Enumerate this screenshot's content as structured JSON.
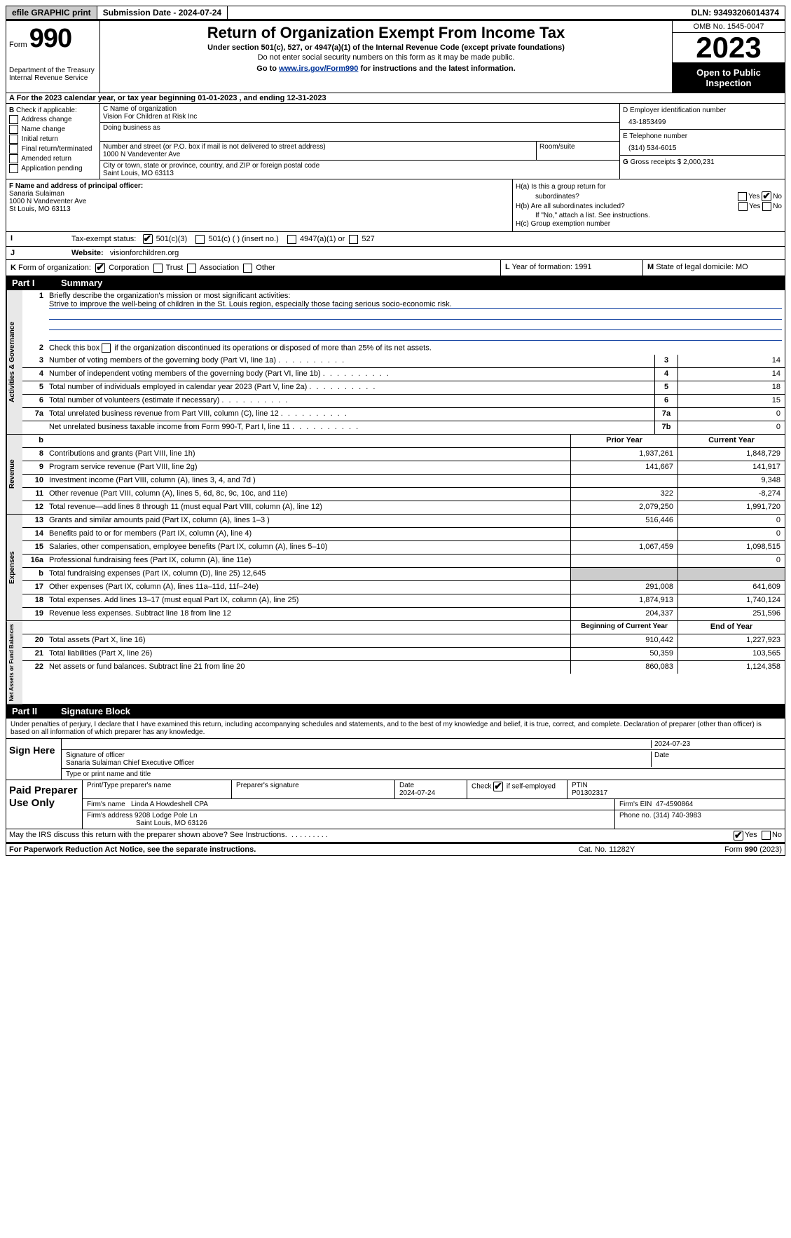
{
  "topbar": {
    "efile": "efile GRAPHIC print",
    "submission": "Submission Date - 2024-07-24",
    "dln": "DLN: 93493206014374"
  },
  "header": {
    "form_word": "Form",
    "form_num": "990",
    "title": "Return of Organization Exempt From Income Tax",
    "under": "Under section 501(c), 527, or 4947(a)(1) of the Internal Revenue Code (except private foundations)",
    "warn": "Do not enter social security numbers on this form as it may be made public.",
    "goto_pre": "Go to ",
    "goto_link": "www.irs.gov/Form990",
    "goto_post": " for instructions and the latest information.",
    "dept": "Department of the Treasury",
    "irs": "Internal Revenue Service",
    "omb": "OMB No. 1545-0047",
    "year": "2023",
    "open": "Open to Public Inspection"
  },
  "row_a": "A For the 2023 calendar year, or tax year beginning 01-01-2023    , and ending 12-31-2023",
  "section_b": {
    "b_label": "B",
    "b_check": "Check if applicable:",
    "b_items": [
      "Address change",
      "Name change",
      "Initial return",
      "Final return/terminated",
      "Amended return",
      "Application pending"
    ],
    "c_name_label": "C Name of organization",
    "c_name": "Vision For Children at Risk Inc",
    "dba_label": "Doing business as",
    "addr_label": "Number and street (or P.O. box if mail is not delivered to street address)",
    "addr": "1000 N Vandeventer Ave",
    "room_label": "Room/suite",
    "city_label": "City or town, state or province, country, and ZIP or foreign postal code",
    "city": "Saint Louis, MO  63113",
    "d_ein_label": "D Employer identification number",
    "d_ein": "43-1853499",
    "e_phone_label": "E Telephone number",
    "e_phone": "(314) 534-6015",
    "g_gross_label": "G",
    "g_gross": "Gross receipts $ 2,000,231"
  },
  "section_fh": {
    "f_label": "F  Name and address of principal officer:",
    "f_name": "Sanaria Sulaiman",
    "f_addr1": "1000 N Vandeventer Ave",
    "f_addr2": "St Louis, MO  63113",
    "ha_label": "H(a)  Is this a group return for",
    "ha_sub": "subordinates?",
    "hb_label": "H(b)  Are all subordinates included?",
    "hb_note": "If \"No,\" attach a list. See instructions.",
    "hc_label": "H(c)  Group exemption number",
    "yes": "Yes",
    "no": "No"
  },
  "row_i": {
    "label": "I",
    "text": "Tax-exempt status:",
    "opt1": "501(c)(3)",
    "opt2": "501(c) (  ) (insert no.)",
    "opt3": "4947(a)(1) or",
    "opt4": "527"
  },
  "row_j": {
    "label": "J",
    "text": "Website:",
    "val": "visionforchildren.org"
  },
  "row_k": {
    "label": "K",
    "text": "Form of organization:",
    "opts": [
      "Corporation",
      "Trust",
      "Association",
      "Other"
    ],
    "l_label": "L",
    "l_text": "Year of formation: 1991",
    "m_label": "M",
    "m_text": "State of legal domicile: MO"
  },
  "part1": {
    "num": "Part I",
    "title": "Summary"
  },
  "governance": {
    "vtab": "Activities & Governance",
    "line1_num": "1",
    "line1": "Briefly describe the organization's mission or most significant activities:",
    "line1_val": "Strive to improve the well-being of children in the St. Louis region, especially those facing serious socio-economic risk.",
    "line2_num": "2",
    "line2": "Check this box            if the organization discontinued its operations or disposed of more than 25% of its net assets.",
    "rows": [
      {
        "n": "3",
        "d": "Number of voting members of the governing body (Part VI, line 1a)",
        "b": "3",
        "v": "14"
      },
      {
        "n": "4",
        "d": "Number of independent voting members of the governing body (Part VI, line 1b)",
        "b": "4",
        "v": "14"
      },
      {
        "n": "5",
        "d": "Total number of individuals employed in calendar year 2023 (Part V, line 2a)",
        "b": "5",
        "v": "18"
      },
      {
        "n": "6",
        "d": "Total number of volunteers (estimate if necessary)",
        "b": "6",
        "v": "15"
      },
      {
        "n": "7a",
        "d": "Total unrelated business revenue from Part VIII, column (C), line 12",
        "b": "7a",
        "v": "0"
      },
      {
        "n": "",
        "d": "Net unrelated business taxable income from Form 990-T, Part I, line 11",
        "b": "7b",
        "v": "0"
      }
    ]
  },
  "revenue": {
    "vtab": "Revenue",
    "head_b": "b",
    "head_prior": "Prior Year",
    "head_curr": "Current Year",
    "rows": [
      {
        "n": "8",
        "d": "Contributions and grants (Part VIII, line 1h)",
        "p": "1,937,261",
        "c": "1,848,729"
      },
      {
        "n": "9",
        "d": "Program service revenue (Part VIII, line 2g)",
        "p": "141,667",
        "c": "141,917"
      },
      {
        "n": "10",
        "d": "Investment income (Part VIII, column (A), lines 3, 4, and 7d )",
        "p": "",
        "c": "9,348"
      },
      {
        "n": "11",
        "d": "Other revenue (Part VIII, column (A), lines 5, 6d, 8c, 9c, 10c, and 11e)",
        "p": "322",
        "c": "-8,274"
      },
      {
        "n": "12",
        "d": "Total revenue—add lines 8 through 11 (must equal Part VIII, column (A), line 12)",
        "p": "2,079,250",
        "c": "1,991,720"
      }
    ]
  },
  "expenses": {
    "vtab": "Expenses",
    "rows": [
      {
        "n": "13",
        "d": "Grants and similar amounts paid (Part IX, column (A), lines 1–3 )",
        "p": "516,446",
        "c": "0"
      },
      {
        "n": "14",
        "d": "Benefits paid to or for members (Part IX, column (A), line 4)",
        "p": "",
        "c": "0"
      },
      {
        "n": "15",
        "d": "Salaries, other compensation, employee benefits (Part IX, column (A), lines 5–10)",
        "p": "1,067,459",
        "c": "1,098,515"
      },
      {
        "n": "16a",
        "d": "Professional fundraising fees (Part IX, column (A), line 11e)",
        "p": "",
        "c": "0"
      },
      {
        "n": "b",
        "d": "Total fundraising expenses (Part IX, column (D), line 25) 12,645",
        "p": "shaded",
        "c": "shaded"
      },
      {
        "n": "17",
        "d": "Other expenses (Part IX, column (A), lines 11a–11d, 11f–24e)",
        "p": "291,008",
        "c": "641,609"
      },
      {
        "n": "18",
        "d": "Total expenses. Add lines 13–17 (must equal Part IX, column (A), line 25)",
        "p": "1,874,913",
        "c": "1,740,124"
      },
      {
        "n": "19",
        "d": "Revenue less expenses. Subtract line 18 from line 12",
        "p": "204,337",
        "c": "251,596"
      }
    ]
  },
  "netassets": {
    "vtab": "Net Assets or Fund Balances",
    "head_prior": "Beginning of Current Year",
    "head_curr": "End of Year",
    "rows": [
      {
        "n": "20",
        "d": "Total assets (Part X, line 16)",
        "p": "910,442",
        "c": "1,227,923"
      },
      {
        "n": "21",
        "d": "Total liabilities (Part X, line 26)",
        "p": "50,359",
        "c": "103,565"
      },
      {
        "n": "22",
        "d": "Net assets or fund balances. Subtract line 21 from line 20",
        "p": "860,083",
        "c": "1,124,358"
      }
    ]
  },
  "part2": {
    "num": "Part II",
    "title": "Signature Block"
  },
  "sig": {
    "decl": "Under penalties of perjury, I declare that I have examined this return, including accompanying schedules and statements, and to the best of my knowledge and belief, it is true, correct, and complete. Declaration of preparer (other than officer) is based on all information of which preparer has any knowledge.",
    "sign_here": "Sign Here",
    "sig_label": "Signature of officer",
    "date_label": "Date",
    "date_val": "2024-07-23",
    "officer": "Sanaria Sulaiman Chief Executive Officer",
    "type_label": "Type or print name and title"
  },
  "prep": {
    "title": "Paid Preparer Use Only",
    "h1": "Print/Type preparer's name",
    "h2": "Preparer's signature",
    "h3": "Date",
    "h3v": "2024-07-24",
    "h4": "Check          if self-employed",
    "h5": "PTIN",
    "h5v": "P01302317",
    "firm_name_l": "Firm's name",
    "firm_name": "Linda A Howdeshell CPA",
    "firm_ein_l": "Firm's EIN",
    "firm_ein": "47-4590864",
    "firm_addr_l": "Firm's address",
    "firm_addr": "9208 Lodge Pole Ln",
    "firm_city": "Saint Louis, MO  63126",
    "phone_l": "Phone no.",
    "phone": "(314) 740-3983"
  },
  "discuss": {
    "q": "May the IRS discuss this return with the preparer shown above? See Instructions.",
    "yes": "Yes",
    "no": "No"
  },
  "footer": {
    "left": "For Paperwork Reduction Act Notice, see the separate instructions.",
    "mid": "Cat. No. 11282Y",
    "right_pre": "Form ",
    "right_b": "990",
    "right_post": " (2023)"
  }
}
